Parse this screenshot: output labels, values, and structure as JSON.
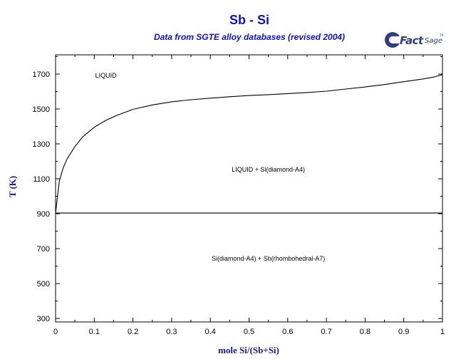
{
  "chart_data": {
    "type": "line",
    "title": "Sb - Si",
    "subtitle": "Data from SGTE alloy databases (revised 2004)",
    "xlabel": "mole Si/(Sb+Si)",
    "ylabel": "T (K)",
    "xlim": [
      0,
      1
    ],
    "ylim": [
      280,
      1810
    ],
    "xticks": [
      0,
      0.1,
      0.2,
      0.3,
      0.4,
      0.5,
      0.6,
      0.7,
      0.8,
      0.9,
      1
    ],
    "xtick_labels": [
      "0",
      "0.1",
      "0.2",
      "0.3",
      "0.4",
      "0.5",
      "0.6",
      "0.7",
      "0.8",
      "0.9",
      "1"
    ],
    "yticks": [
      300,
      500,
      700,
      900,
      1100,
      1300,
      1500,
      1700
    ],
    "ytick_labels": [
      "300",
      "500",
      "700",
      "900",
      "1100",
      "1300",
      "1500",
      "1700"
    ],
    "grid": false,
    "series": [
      {
        "color": "#000000",
        "x": [
          0,
          0.005,
          0.01,
          0.02,
          0.03,
          0.05,
          0.07,
          0.1,
          0.13,
          0.16,
          0.2,
          0.25,
          0.3,
          0.35,
          0.4,
          0.45,
          0.5,
          0.55,
          0.6,
          0.65,
          0.7,
          0.75,
          0.8,
          0.85,
          0.9,
          0.95,
          0.98,
          1.0
        ],
        "y": [
          904,
          1000,
          1090,
          1165,
          1215,
          1285,
          1340,
          1395,
          1435,
          1465,
          1498,
          1523,
          1541,
          1553,
          1562,
          1570,
          1577,
          1582,
          1588,
          1594,
          1602,
          1614,
          1626,
          1640,
          1656,
          1672,
          1684,
          1697
        ]
      },
      {
        "color": "#000000",
        "x": [
          0,
          1
        ],
        "y": [
          904,
          904
        ]
      }
    ],
    "annotations": [
      {
        "text": "LIQUID",
        "x": 0.13,
        "y": 1680
      },
      {
        "text": "LIQUID + Si(diamond-A4)",
        "x": 0.55,
        "y": 1140
      },
      {
        "text": "Si(diamond-A4) + Sb(rhombohedral-A7)",
        "x": 0.55,
        "y": 630
      }
    ]
  },
  "logo": {
    "text": "FactSage",
    "mark": "TM"
  },
  "colors": {
    "title": "#1010c8",
    "axis_label": "#1a1a8c",
    "frame": "#000000",
    "curve": "#000000",
    "logo": "#2f3f7f"
  }
}
